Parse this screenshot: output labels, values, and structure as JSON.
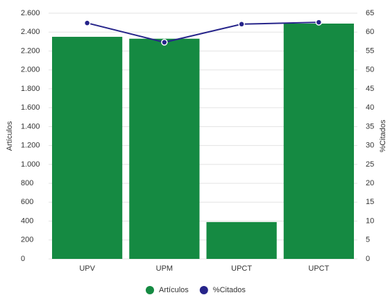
{
  "chart_data": {
    "type": "bar",
    "categories": [
      "UPV",
      "UPM",
      "UPCT",
      "UPCT"
    ],
    "series": [
      {
        "name": "Artículos",
        "type": "bar",
        "color": "#158a42",
        "values": [
          2350,
          2330,
          390,
          2490
        ]
      },
      {
        "name": "%Citados",
        "type": "line",
        "axis": "y2",
        "color": "#26248a",
        "values": [
          62.4,
          57.3,
          62.1,
          62.6
        ]
      }
    ],
    "ylabel": "Artículos",
    "y2label": "%Citados",
    "ylim": [
      0,
      2600
    ],
    "yticks": [
      0,
      200,
      400,
      600,
      800,
      {
        "value": 1000,
        "label": "1.000"
      },
      {
        "value": 1200,
        "label": "1.200"
      },
      {
        "value": 1400,
        "label": "1.400"
      },
      {
        "value": 1600,
        "label": "1.600"
      },
      {
        "value": 1800,
        "label": "1.800"
      },
      {
        "value": 2000,
        "label": "2.000"
      },
      {
        "value": 2200,
        "label": "2.200"
      },
      {
        "value": 2400,
        "label": "2.400"
      },
      {
        "value": 2600,
        "label": "2.600"
      }
    ],
    "y2lim": [
      0,
      65
    ],
    "y2ticks": [
      0,
      5,
      10,
      15,
      20,
      25,
      30,
      35,
      40,
      45,
      50,
      55,
      60,
      65
    ],
    "grid": true,
    "legend": "bottom"
  }
}
